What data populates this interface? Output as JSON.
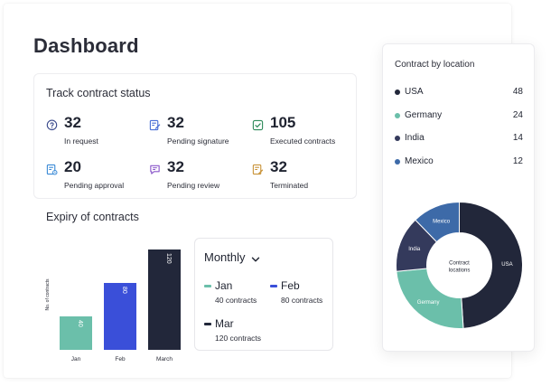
{
  "page": {
    "title": "Dashboard"
  },
  "status": {
    "title": "Track contract status",
    "items": [
      {
        "value": "32",
        "label": "In request",
        "icon": "question-doc-icon",
        "color": "#3b4a8c"
      },
      {
        "value": "32",
        "label": "Pending signature",
        "icon": "signature-doc-icon",
        "color": "#4a6fd6"
      },
      {
        "value": "105",
        "label": "Executed contracts",
        "icon": "check-doc-icon",
        "color": "#2f8a5a"
      },
      {
        "value": "20",
        "label": "Pending approval",
        "icon": "approval-doc-icon",
        "color": "#3a8ad6"
      },
      {
        "value": "32",
        "label": "Pending review",
        "icon": "review-chat-icon",
        "color": "#8a56c9"
      },
      {
        "value": "32",
        "label": "Terminated",
        "icon": "terminated-doc-icon",
        "color": "#c9943a"
      }
    ]
  },
  "expiry": {
    "title": "Expiry of contracts",
    "select": {
      "label": "Monthly"
    },
    "legend": [
      {
        "name": "Jan",
        "count": "40 contracts",
        "color": "#6bbfaa"
      },
      {
        "name": "Feb",
        "count": "80 contracts",
        "color": "#3a4fd9"
      },
      {
        "name": "Mar",
        "count": "120 contracts",
        "color": "#22273a"
      }
    ]
  },
  "location": {
    "title": "Contract by location",
    "items": [
      {
        "name": "USA",
        "value": "48",
        "color": "#22273a"
      },
      {
        "name": "Germany",
        "value": "24",
        "color": "#6bbfaa"
      },
      {
        "name": "India",
        "value": "14",
        "color": "#343a5c"
      },
      {
        "name": "Mexico",
        "value": "12",
        "color": "#3d6aa8"
      }
    ]
  },
  "chart_data": [
    {
      "type": "bar",
      "categories": [
        "Jan",
        "Feb",
        "March"
      ],
      "values": [
        40,
        80,
        120
      ],
      "ylabel": "No. of contracts",
      "ylim": [
        0,
        120
      ],
      "colors": [
        "#6bbfaa",
        "#3a4fd9",
        "#22273a"
      ]
    },
    {
      "type": "pie",
      "center_label": "Contract locations",
      "categories": [
        "USA",
        "Germany",
        "India",
        "Mexico"
      ],
      "values": [
        48,
        24,
        14,
        12
      ],
      "colors": [
        "#22273a",
        "#6bbfaa",
        "#343a5c",
        "#3d6aa8"
      ]
    }
  ]
}
